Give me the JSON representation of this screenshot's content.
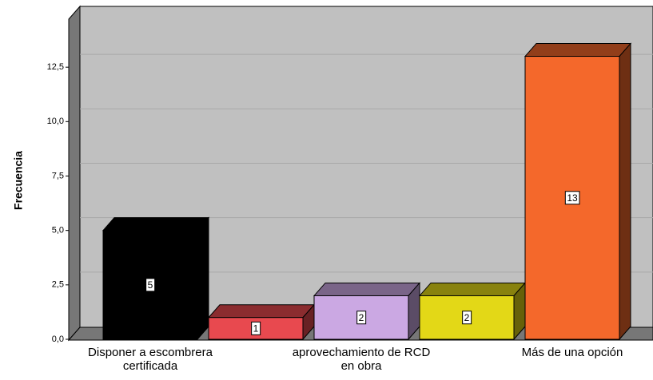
{
  "chart_data": {
    "type": "bar3d",
    "ylabel": "Frecuencia",
    "categories": [
      "Disponer a escombrera certificada",
      null,
      "aprovechamiento de RCD en obra",
      null,
      "Más de una opción"
    ],
    "values": [
      5,
      1,
      2,
      2,
      13
    ],
    "colors": [
      "#000000",
      "#e8494f",
      "#cba8e3",
      "#e3d817",
      "#f4682b"
    ],
    "ylim": [
      0,
      15
    ],
    "yticks": [
      {
        "value": 0,
        "label": "0,0"
      },
      {
        "value": 2.5,
        "label": "2,5"
      },
      {
        "value": 5,
        "label": "5,0"
      },
      {
        "value": 7.5,
        "label": "7,5"
      },
      {
        "value": 10,
        "label": "10,0"
      },
      {
        "value": 12.5,
        "label": "12,5"
      }
    ],
    "grid": true
  }
}
